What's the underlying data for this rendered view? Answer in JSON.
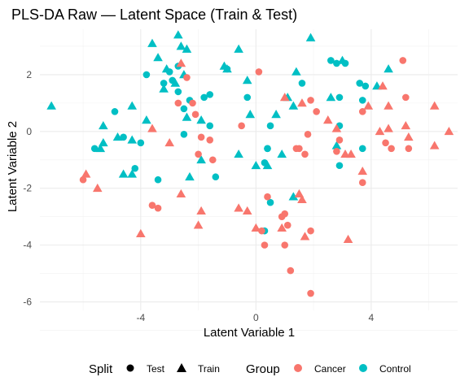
{
  "chart_data": {
    "type": "scatter",
    "title": "PLS-DA Raw — Latent Space (Train & Test)",
    "xlabel": "Latent Variable 1",
    "ylabel": "Latent Variable 2",
    "xlim": [
      -7.5,
      7
    ],
    "ylim": [
      -6.3,
      3.6
    ],
    "xticks": [
      -4,
      0,
      4
    ],
    "yticks": [
      -6,
      -4,
      -2,
      0,
      2
    ],
    "grid": true,
    "legend_position": "bottom",
    "legends": {
      "split": {
        "title": "Split",
        "items": [
          {
            "label": "Test",
            "shape": "circle"
          },
          {
            "label": "Train",
            "shape": "triangle"
          }
        ]
      },
      "group": {
        "title": "Group",
        "items": [
          {
            "label": "Cancer",
            "color": "#F8766D"
          },
          {
            "label": "Control",
            "color": "#00BFC4"
          }
        ]
      }
    },
    "colors": {
      "Cancer": "#F8766D",
      "Control": "#00BFC4"
    },
    "series": [
      {
        "group": "Control",
        "split": "Train",
        "points": [
          [
            -7.1,
            0.9
          ],
          [
            -5.3,
            0.2
          ],
          [
            -5.3,
            -0.4
          ],
          [
            -5.4,
            -0.6
          ],
          [
            -4.8,
            -0.2
          ],
          [
            -4.6,
            -1.5
          ],
          [
            -4.3,
            0.9
          ],
          [
            -4.3,
            -1.5
          ],
          [
            -4.3,
            -0.3
          ],
          [
            -3.8,
            0.4
          ],
          [
            -3.6,
            3.1
          ],
          [
            -3.4,
            2.6
          ],
          [
            -3.2,
            1.5
          ],
          [
            -3.1,
            2.2
          ],
          [
            -2.8,
            1.7
          ],
          [
            -2.7,
            3.4
          ],
          [
            -2.6,
            3.0
          ],
          [
            -2.5,
            2.0
          ],
          [
            -2.4,
            2.9
          ],
          [
            -2.4,
            0.5
          ],
          [
            -2.3,
            -1.6
          ],
          [
            -1.9,
            0.4
          ],
          [
            -1.9,
            -1.0
          ],
          [
            -1.1,
            2.3
          ],
          [
            -1.0,
            2.2
          ],
          [
            -0.6,
            2.9
          ],
          [
            -0.6,
            -0.8
          ],
          [
            -0.3,
            1.8
          ],
          [
            -0.2,
            0.6
          ],
          [
            0.0,
            -1.2
          ],
          [
            0.4,
            -1.2
          ],
          [
            0.7,
            0.6
          ],
          [
            0.9,
            -0.8
          ],
          [
            1.1,
            1.2
          ],
          [
            1.3,
            0.9
          ],
          [
            1.3,
            -2.3
          ],
          [
            1.4,
            2.1
          ],
          [
            1.9,
            3.3
          ],
          [
            2.6,
            1.2
          ],
          [
            2.8,
            -0.5
          ],
          [
            3.0,
            2.5
          ],
          [
            4.2,
            1.6
          ],
          [
            4.6,
            2.2
          ]
        ]
      },
      {
        "group": "Control",
        "split": "Test",
        "points": [
          [
            -5.6,
            -0.6
          ],
          [
            -4.9,
            0.7
          ],
          [
            -4.6,
            -0.2
          ],
          [
            -4.2,
            -1.3
          ],
          [
            -4.0,
            -0.4
          ],
          [
            -3.8,
            2.0
          ],
          [
            -3.4,
            -1.7
          ],
          [
            -3.2,
            1.7
          ],
          [
            -3.0,
            2.1
          ],
          [
            -2.9,
            1.8
          ],
          [
            -2.7,
            2.3
          ],
          [
            -2.7,
            1.4
          ],
          [
            -2.5,
            -0.1
          ],
          [
            -2.5,
            0.8
          ],
          [
            -2.3,
            1.1
          ],
          [
            -1.8,
            1.2
          ],
          [
            -1.6,
            1.3
          ],
          [
            -1.6,
            0.2
          ],
          [
            -1.4,
            -1.6
          ],
          [
            -1.0,
            2.2
          ],
          [
            -0.3,
            1.2
          ],
          [
            0.3,
            -3.5
          ],
          [
            0.3,
            -1.1
          ],
          [
            0.4,
            -0.6
          ],
          [
            0.4,
            -0.6
          ],
          [
            0.5,
            0.2
          ],
          [
            0.5,
            -2.5
          ],
          [
            1.6,
            1.7
          ],
          [
            2.6,
            2.5
          ],
          [
            2.8,
            2.4
          ],
          [
            2.9,
            0.2
          ],
          [
            2.9,
            1.2
          ],
          [
            2.9,
            -1.2
          ],
          [
            3.1,
            2.4
          ],
          [
            3.6,
            1.7
          ],
          [
            3.7,
            1.1
          ],
          [
            3.8,
            1.6
          ],
          [
            3.7,
            -0.6
          ]
        ]
      },
      {
        "group": "Cancer",
        "split": "Train",
        "points": [
          [
            -5.9,
            -1.5
          ],
          [
            -5.5,
            -2.0
          ],
          [
            -4.0,
            -3.6
          ],
          [
            -3.6,
            0.1
          ],
          [
            -3.0,
            -0.4
          ],
          [
            -2.6,
            2.4
          ],
          [
            -2.6,
            -2.2
          ],
          [
            -2.0,
            -3.3
          ],
          [
            -1.9,
            -2.8
          ],
          [
            -0.6,
            -2.7
          ],
          [
            -0.3,
            -2.8
          ],
          [
            0.0,
            -3.4
          ],
          [
            0.9,
            -3.4
          ],
          [
            1.0,
            1.2
          ],
          [
            1.5,
            -2.2
          ],
          [
            1.6,
            -2.4
          ],
          [
            1.6,
            1.0
          ],
          [
            1.7,
            -3.7
          ],
          [
            2.5,
            0.4
          ],
          [
            2.8,
            0.1
          ],
          [
            3.1,
            -0.8
          ],
          [
            3.2,
            -3.8
          ],
          [
            3.3,
            -0.8
          ],
          [
            3.7,
            -1.4
          ],
          [
            3.9,
            0.9
          ],
          [
            4.3,
            0.0
          ],
          [
            4.4,
            1.6
          ],
          [
            4.6,
            0.1
          ],
          [
            4.6,
            0.9
          ],
          [
            5.2,
            0.2
          ],
          [
            5.3,
            -0.2
          ],
          [
            6.2,
            0.9
          ],
          [
            6.2,
            -0.5
          ],
          [
            6.7,
            0.0
          ]
        ]
      },
      {
        "group": "Cancer",
        "split": "Test",
        "points": [
          [
            -6.0,
            -1.7
          ],
          [
            -3.6,
            -2.6
          ],
          [
            -3.4,
            -2.7
          ],
          [
            -2.7,
            1.0
          ],
          [
            -2.4,
            1.9
          ],
          [
            -2.2,
            1.0
          ],
          [
            -2.1,
            0.6
          ],
          [
            -2.0,
            -0.8
          ],
          [
            -1.9,
            -0.2
          ],
          [
            -1.6,
            -0.3
          ],
          [
            -1.5,
            -1.0
          ],
          [
            -0.5,
            0.2
          ],
          [
            0.1,
            2.1
          ],
          [
            0.2,
            -3.5
          ],
          [
            0.3,
            -4.0
          ],
          [
            0.4,
            -2.3
          ],
          [
            0.9,
            -3.0
          ],
          [
            1.0,
            -2.9
          ],
          [
            1.1,
            -3.3
          ],
          [
            1.2,
            -4.9
          ],
          [
            1.4,
            -0.6
          ],
          [
            1.5,
            -0.6
          ],
          [
            1.7,
            -0.8
          ],
          [
            1.8,
            -0.1
          ],
          [
            1.9,
            1.1
          ],
          [
            1.9,
            -5.7
          ],
          [
            2.1,
            0.7
          ],
          [
            1.9,
            -3.5
          ],
          [
            2.9,
            -0.3
          ],
          [
            2.8,
            -0.7
          ],
          [
            3.7,
            -1.8
          ],
          [
            3.7,
            0.7
          ],
          [
            4.5,
            -0.4
          ],
          [
            4.7,
            -0.6
          ],
          [
            5.1,
            2.5
          ],
          [
            5.2,
            1.2
          ],
          [
            5.3,
            -0.6
          ],
          [
            1.0,
            -4.0
          ]
        ]
      }
    ]
  }
}
